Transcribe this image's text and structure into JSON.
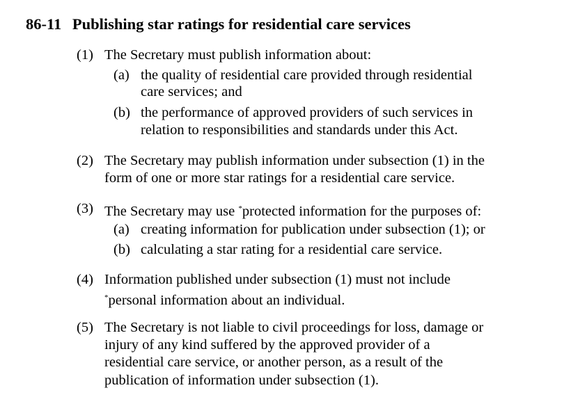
{
  "section": {
    "number": "86-11",
    "title": "Publishing star ratings for residential care services"
  },
  "subsections": [
    {
      "label": "(1)",
      "lines": [
        "The Secretary must publish information about:"
      ],
      "paragraphs": [
        {
          "label": "(a)",
          "lines": [
            "the quality of residential care provided through residential",
            "care services; and"
          ]
        },
        {
          "label": "(b)",
          "lines": [
            "the performance of approved providers of such services in",
            "relation to responsibilities and standards under this Act."
          ]
        }
      ]
    },
    {
      "label": "(2)",
      "lines": [
        "The Secretary may publish information under subsection (1) in the",
        "form of one or more star ratings for a residential care service."
      ]
    },
    {
      "label": "(3)",
      "line_before": "The Secretary may use ",
      "asterisk": "*",
      "line_after": "protected information for the purposes of:",
      "paragraphs": [
        {
          "label": "(a)",
          "lines": [
            "creating information for publication under subsection (1); or"
          ]
        },
        {
          "label": "(b)",
          "lines": [
            "calculating a star rating for a residential care service."
          ]
        }
      ]
    },
    {
      "label": "(4)",
      "lines": [
        "Information published under subsection (1) must not include"
      ],
      "asterisk": "*",
      "line2_after": "personal information about an individual."
    },
    {
      "label": "(5)",
      "lines": [
        "The Secretary is not liable to civil proceedings for loss, damage or",
        "injury of any kind suffered by the approved provider of a",
        "residential care service, or another person, as a result of the",
        "publication of information under subsection (1)."
      ]
    }
  ]
}
